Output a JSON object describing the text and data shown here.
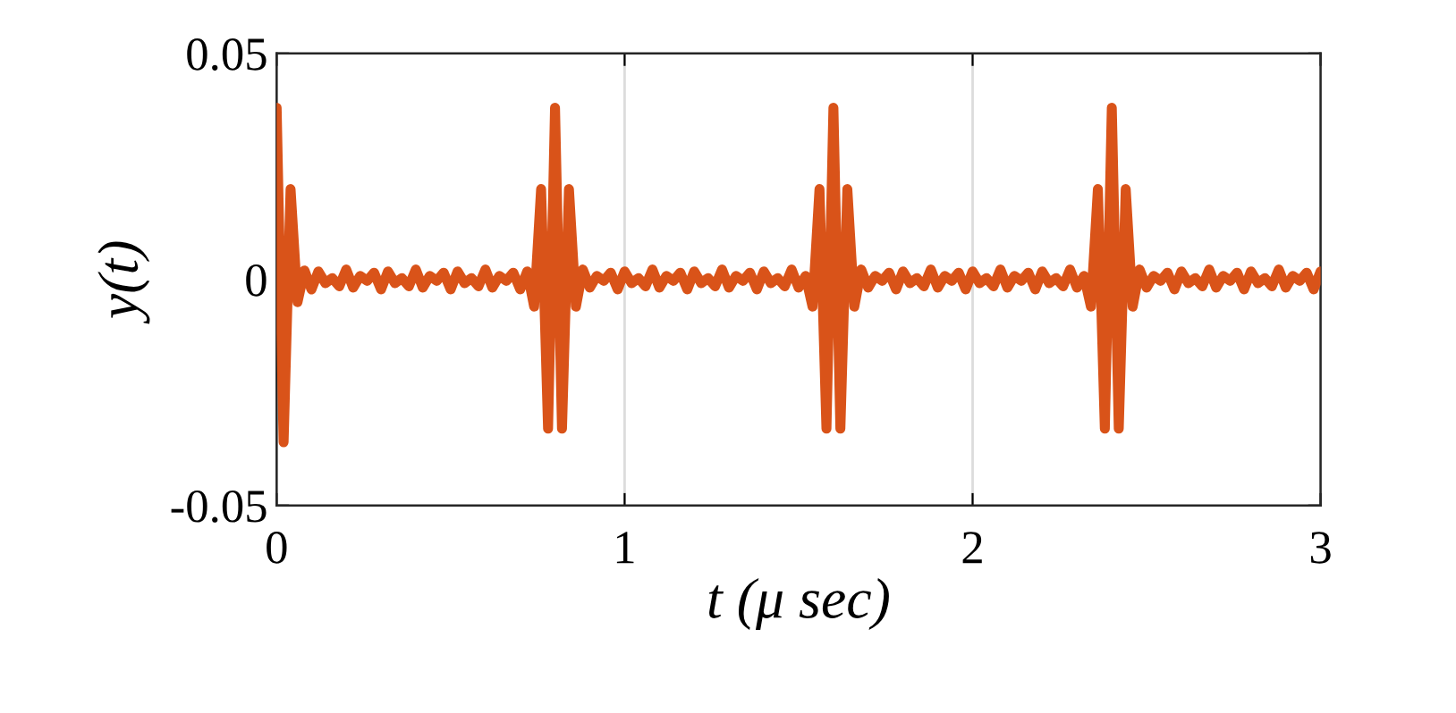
{
  "chart_data": {
    "type": "line",
    "xlabel": "t (μ sec)",
    "ylabel": "y(t)",
    "xlim": [
      0,
      3
    ],
    "xticks": [
      0,
      1,
      2,
      3
    ],
    "ylim": [
      -0.05,
      0.05
    ],
    "yticks": [
      {
        "value": -0.05,
        "label": "-0.05"
      },
      0,
      0.05
    ],
    "grid": "x",
    "marker": "none",
    "line_style": "solid",
    "series": [
      {
        "color": "#d95319",
        "x": [
          0,
          0.02,
          0.04,
          0.06,
          0.08,
          0.1,
          0.12,
          0.14,
          0.16,
          0.18,
          0.2,
          0.22,
          0.24,
          0.26,
          0.28,
          0.3,
          0.32,
          0.34,
          0.36,
          0.38,
          0.4,
          0.42,
          0.44,
          0.46,
          0.48,
          0.5,
          0.52,
          0.54,
          0.56,
          0.58,
          0.6,
          0.62,
          0.64,
          0.66,
          0.68,
          0.7,
          0.72,
          0.74,
          0.76,
          0.78,
          0.8,
          0.82,
          0.84,
          0.86,
          0.88,
          0.9,
          0.92,
          0.94,
          0.96,
          0.98,
          1.0,
          1.02,
          1.04,
          1.06,
          1.08,
          1.1,
          1.12,
          1.14,
          1.16,
          1.18,
          1.2,
          1.22,
          1.24,
          1.26,
          1.28,
          1.3,
          1.32,
          1.34,
          1.36,
          1.38,
          1.4,
          1.42,
          1.44,
          1.46,
          1.48,
          1.5,
          1.52,
          1.54,
          1.56,
          1.58,
          1.6,
          1.62,
          1.64,
          1.66,
          1.68,
          1.7,
          1.72,
          1.74,
          1.76,
          1.78,
          1.8,
          1.82,
          1.84,
          1.86,
          1.88,
          1.9,
          1.92,
          1.94,
          1.96,
          1.98,
          2.0,
          2.02,
          2.04,
          2.06,
          2.08,
          2.1,
          2.12,
          2.14,
          2.16,
          2.18,
          2.2,
          2.22,
          2.24,
          2.26,
          2.28,
          2.3,
          2.32,
          2.34,
          2.36,
          2.38,
          2.4,
          2.42,
          2.44,
          2.46,
          2.48,
          2.5,
          2.52,
          2.54,
          2.56,
          2.58,
          2.6,
          2.62,
          2.64,
          2.66,
          2.68,
          2.7,
          2.72,
          2.74,
          2.76,
          2.78,
          2.8,
          2.82,
          2.84,
          2.86,
          2.88,
          2.9,
          2.92,
          2.94,
          2.96,
          2.98,
          3.0
        ],
        "values": [
          0.038,
          -0.036,
          0.02,
          -0.005,
          0.002,
          -0.0022,
          0.0018,
          -0.0008,
          0.0003,
          -0.0015,
          0.0022,
          -0.0018,
          0.0008,
          -0.0003,
          0.0015,
          -0.0022,
          0.0018,
          -0.0008,
          0.0003,
          -0.0015,
          0.0022,
          -0.0018,
          0.0008,
          -0.0003,
          0.0015,
          -0.0022,
          0.0018,
          -0.0008,
          0.0003,
          -0.0015,
          0.0022,
          -0.0018,
          0.0008,
          -0.0003,
          0.0015,
          -0.0022,
          0.0018,
          -0.006,
          0.02,
          -0.033,
          0.038,
          -0.033,
          0.02,
          -0.006,
          0.0022,
          -0.0018,
          0.0008,
          -0.0003,
          0.0015,
          -0.0022,
          0.0018,
          -0.0008,
          0.0003,
          -0.0015,
          0.0022,
          -0.0018,
          0.0008,
          -0.0003,
          0.0015,
          -0.0022,
          0.0018,
          -0.0008,
          0.0003,
          -0.0015,
          0.0022,
          -0.0018,
          0.0008,
          -0.0003,
          0.0015,
          -0.0022,
          0.0018,
          -0.0008,
          0.0003,
          -0.0015,
          0.0022,
          -0.0018,
          0.0008,
          -0.006,
          0.02,
          -0.033,
          0.038,
          -0.033,
          0.02,
          -0.006,
          0.0022,
          -0.0018,
          0.0008,
          -0.0003,
          0.0015,
          -0.0022,
          0.0018,
          -0.0008,
          0.0003,
          -0.0015,
          0.0022,
          -0.0018,
          0.0008,
          -0.0003,
          0.0015,
          -0.0022,
          0.0018,
          -0.0008,
          0.0003,
          -0.0015,
          0.0022,
          -0.0018,
          0.0008,
          -0.0003,
          0.0015,
          -0.0022,
          0.0018,
          -0.0008,
          0.0003,
          -0.0015,
          0.0022,
          -0.0018,
          0.0008,
          -0.006,
          0.02,
          -0.033,
          0.038,
          -0.033,
          0.02,
          -0.006,
          0.0022,
          -0.0018,
          0.0008,
          -0.0003,
          0.0015,
          -0.0022,
          0.0018,
          -0.0008,
          0.0003,
          -0.0015,
          0.0022,
          -0.0018,
          0.0008,
          -0.0003,
          0.0015,
          -0.0022,
          0.0018,
          -0.0008,
          0.0003,
          -0.0015,
          0.0022,
          -0.0018,
          0.0008,
          -0.0003,
          0.0015,
          -0.0022,
          0.0018
        ]
      }
    ]
  }
}
